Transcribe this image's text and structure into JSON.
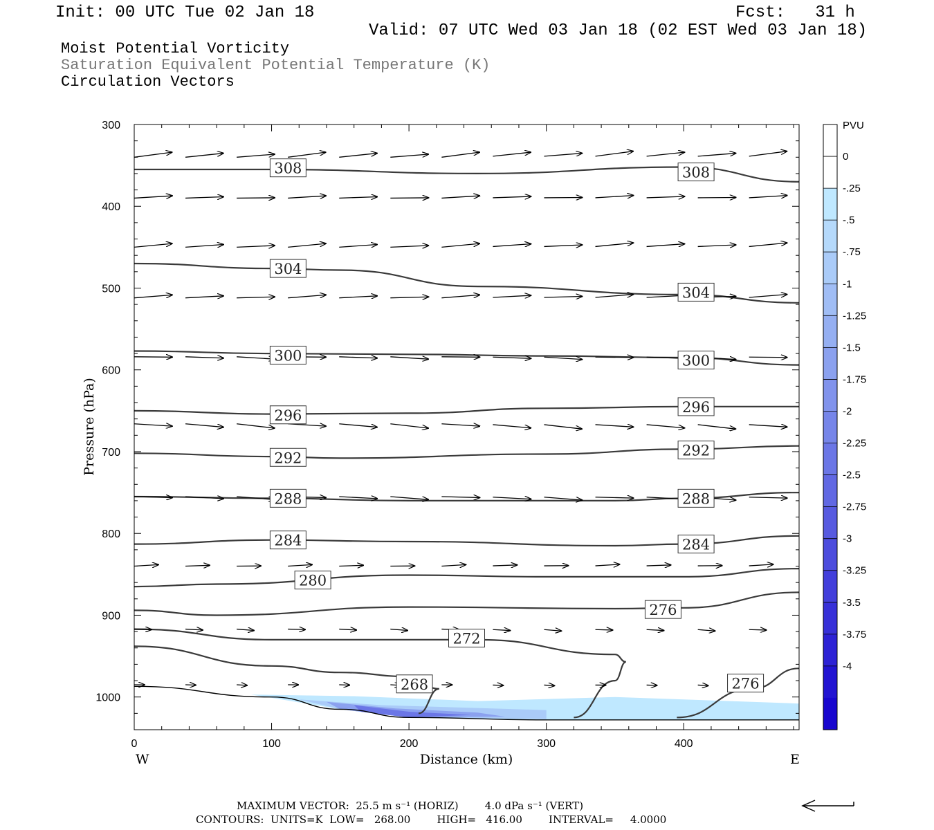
{
  "header": {
    "init": "Init: 00 UTC Tue 02 Jan 18",
    "fcst": "Fcst:   31 h",
    "valid": "Valid: 07 UTC Wed 03 Jan 18 (02 EST Wed 03 Jan 18)"
  },
  "fields": {
    "line1": "Moist Potential Vorticity",
    "line2": "Saturation Equivalent Potential Temperature (K)",
    "line3": "Circulation Vectors"
  },
  "footer": {
    "line1": "MAXIMUM VECTOR:  25.5 m s⁻¹ (HORIZ)        4.0 dPa s⁻¹ (VERT)",
    "line2": "CONTOURS:  UNITS=K  LOW=   268.00        HIGH=   416.00        INTERVAL=     4.0000"
  },
  "colors": {
    "contour": "#3a3a3a",
    "pv_shades": [
      "#ffffff",
      "#ffffff",
      "#bfe8ff",
      "#b5d9fb",
      "#aacbf8",
      "#a0bdf5",
      "#95aff2",
      "#8ba1ef",
      "#8193ec",
      "#7685e9",
      "#6b76e6",
      "#6168e3",
      "#575ae0",
      "#4c4cdd",
      "#423edb",
      "#3730d8",
      "#2d22d5",
      "#2214d2",
      "#1806cf"
    ]
  },
  "chart_data": {
    "type": "contour",
    "xlabel": "Distance (km)",
    "ylabel": "Pressure (hPa)",
    "x_range": [
      0,
      484
    ],
    "y_range": [
      300,
      1040
    ],
    "x_ticks": [
      0,
      100,
      200,
      300,
      400
    ],
    "y_ticks": [
      300,
      400,
      500,
      600,
      700,
      800,
      900,
      1000
    ],
    "x_end_labels": {
      "left": "W",
      "right": "E"
    },
    "colorbar": {
      "units": "PVU",
      "labels": [
        "0",
        "-.25",
        "-.5",
        "-.75",
        "-1",
        "-1.25",
        "-1.5",
        "-1.75",
        "-2",
        "-2.25",
        "-2.5",
        "-2.75",
        "-3",
        "-3.25",
        "-3.5",
        "-3.75",
        "-4"
      ]
    },
    "theta_es_contours": [
      {
        "level": 308,
        "points": [
          [
            0,
            355
          ],
          [
            100,
            355
          ],
          [
            250,
            360
          ],
          [
            400,
            352
          ],
          [
            484,
            370
          ]
        ],
        "labels": [
          [
            112,
            353
          ],
          [
            409,
            358
          ]
        ]
      },
      {
        "level": 304,
        "points": [
          [
            0,
            470
          ],
          [
            100,
            476
          ],
          [
            150,
            478
          ],
          [
            250,
            498
          ],
          [
            400,
            508
          ],
          [
            484,
            518
          ]
        ],
        "labels": [
          [
            112,
            476
          ],
          [
            409,
            505
          ]
        ]
      },
      {
        "level": 300,
        "points": [
          [
            0,
            577
          ],
          [
            100,
            580
          ],
          [
            200,
            581
          ],
          [
            300,
            583
          ],
          [
            400,
            585
          ],
          [
            484,
            594
          ]
        ],
        "labels": [
          [
            112,
            582
          ],
          [
            409,
            588
          ]
        ]
      },
      {
        "level": 296,
        "points": [
          [
            0,
            650
          ],
          [
            100,
            654
          ],
          [
            200,
            653
          ],
          [
            300,
            647
          ],
          [
            400,
            645
          ],
          [
            484,
            645
          ]
        ],
        "labels": [
          [
            112,
            655
          ],
          [
            409,
            645
          ]
        ]
      },
      {
        "level": 292,
        "points": [
          [
            0,
            702
          ],
          [
            100,
            706
          ],
          [
            150,
            708
          ],
          [
            300,
            703
          ],
          [
            400,
            697
          ],
          [
            484,
            693
          ]
        ],
        "labels": [
          [
            112,
            707
          ],
          [
            409,
            698
          ]
        ]
      },
      {
        "level": 288,
        "points": [
          [
            0,
            755
          ],
          [
            100,
            757
          ],
          [
            200,
            760
          ],
          [
            350,
            760
          ],
          [
            400,
            757
          ],
          [
            484,
            750
          ]
        ],
        "labels": [
          [
            112,
            757
          ],
          [
            409,
            757
          ]
        ]
      },
      {
        "level": 284,
        "points": [
          [
            0,
            813
          ],
          [
            100,
            808
          ],
          [
            200,
            810
          ],
          [
            350,
            815
          ],
          [
            400,
            813
          ],
          [
            484,
            803
          ]
        ],
        "labels": [
          [
            112,
            808
          ],
          [
            409,
            813
          ]
        ]
      },
      {
        "level": 280,
        "points": [
          [
            0,
            865
          ],
          [
            60,
            862
          ],
          [
            200,
            851
          ],
          [
            300,
            853
          ],
          [
            400,
            853
          ],
          [
            484,
            843
          ]
        ],
        "labels": [
          [
            130,
            857
          ]
        ]
      },
      {
        "level": 276,
        "points": [
          [
            0,
            894
          ],
          [
            60,
            900
          ],
          [
            200,
            890
          ],
          [
            350,
            892
          ],
          [
            400,
            891
          ],
          [
            484,
            872
          ]
        ],
        "labels": [
          [
            385,
            893
          ]
        ]
      },
      {
        "level": 272,
        "points": [
          [
            0,
            917
          ],
          [
            100,
            930
          ],
          [
            250,
            930
          ],
          [
            350,
            948
          ],
          [
            358,
            957
          ],
          [
            350,
            980
          ],
          [
            320,
            1025
          ]
        ],
        "labels": [
          [
            242,
            928
          ]
        ]
      },
      {
        "level": 268,
        "points": [
          [
            0,
            938
          ],
          [
            100,
            962
          ],
          [
            150,
            970
          ],
          [
            200,
            975
          ],
          [
            222,
            990
          ],
          [
            207,
            1020
          ]
        ],
        "labels": [
          [
            204,
            984
          ]
        ]
      },
      {
        "level": 276,
        "points": [
          [
            395,
            1025
          ],
          [
            450,
            990
          ],
          [
            484,
            965
          ]
        ],
        "labels": [
          [
            445,
            983
          ]
        ]
      }
    ],
    "surface_line": [
      [
        0,
        987
      ],
      [
        100,
        1000
      ],
      [
        150,
        1015
      ],
      [
        200,
        1025
      ],
      [
        300,
        1028
      ],
      [
        400,
        1028
      ],
      [
        484,
        1028
      ]
    ],
    "circulation_rows": [
      {
        "p": 340,
        "dp": -6
      },
      {
        "p": 390,
        "dp": -2
      },
      {
        "p": 450,
        "dp": -4
      },
      {
        "p": 512,
        "dp": -3
      },
      {
        "p": 584,
        "dp": 2
      },
      {
        "p": 666,
        "dp": 5
      },
      {
        "p": 755,
        "dp": 3
      },
      {
        "p": 840,
        "dp": -2
      },
      {
        "p": 917,
        "dp": 3
      },
      {
        "p": 985,
        "dp": 2
      }
    ],
    "pv_shading_region": "low-level negative PV near surface, x 85-484 km, 990-1030 hPa"
  }
}
